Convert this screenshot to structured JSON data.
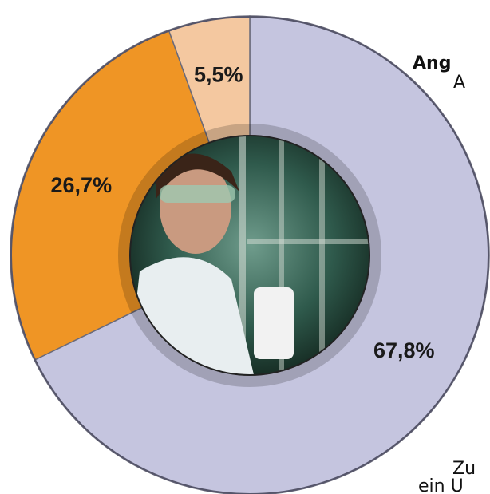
{
  "chart_data": {
    "type": "pie",
    "categories": [
      null,
      null,
      null
    ],
    "values": [
      67.8,
      26.7,
      5.5
    ],
    "value_labels": [
      "67,8%",
      "26,7%",
      "5,5%"
    ],
    "colors": [
      "#c5c5df",
      "#ef9525",
      "#f4c8a0"
    ],
    "annotations": [
      "Ang",
      "A",
      "Zu",
      "ein U"
    ]
  }
}
